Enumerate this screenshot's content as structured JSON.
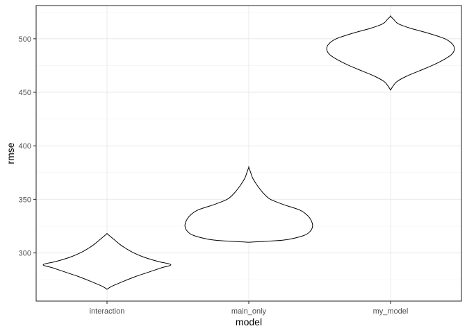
{
  "chart_data": {
    "type": "violin",
    "title": "",
    "xlabel": "model",
    "ylabel": "rmse",
    "categories": [
      "interaction",
      "main_only",
      "my_model"
    ],
    "ylim": [
      255,
      531
    ],
    "yticks": [
      300,
      350,
      400,
      450,
      500
    ],
    "grid": true,
    "theme": "bw",
    "colors": {
      "violin_stroke": "#000000",
      "violin_fill": "#ffffff",
      "grid_major": "#ebebeb",
      "grid_minor": "#f2f2f2",
      "panel_border": "#333333",
      "tick_label": "#4d4d4d"
    },
    "series": [
      {
        "category": "interaction",
        "min": 266,
        "max": 318,
        "profile": [
          [
            266,
            0.0
          ],
          [
            268,
            0.05
          ],
          [
            270,
            0.12
          ],
          [
            274,
            0.28
          ],
          [
            278,
            0.45
          ],
          [
            282,
            0.65
          ],
          [
            286,
            0.85
          ],
          [
            289,
            1.0
          ],
          [
            292,
            0.8
          ],
          [
            296,
            0.58
          ],
          [
            300,
            0.42
          ],
          [
            304,
            0.3
          ],
          [
            308,
            0.2
          ],
          [
            312,
            0.12
          ],
          [
            316,
            0.04
          ],
          [
            318,
            0.0
          ]
        ]
      },
      {
        "category": "main_only",
        "min": 310,
        "max": 380,
        "profile": [
          [
            310,
            0.0
          ],
          [
            312,
            0.55
          ],
          [
            316,
            0.85
          ],
          [
            320,
            0.96
          ],
          [
            325,
            1.0
          ],
          [
            330,
            0.98
          ],
          [
            335,
            0.92
          ],
          [
            340,
            0.8
          ],
          [
            345,
            0.55
          ],
          [
            350,
            0.34
          ],
          [
            355,
            0.24
          ],
          [
            360,
            0.17
          ],
          [
            365,
            0.11
          ],
          [
            370,
            0.06
          ],
          [
            375,
            0.03
          ],
          [
            380,
            0.0
          ]
        ]
      },
      {
        "category": "my_model",
        "min": 452,
        "max": 521,
        "profile": [
          [
            452,
            0.0
          ],
          [
            455,
            0.03
          ],
          [
            460,
            0.1
          ],
          [
            465,
            0.25
          ],
          [
            470,
            0.45
          ],
          [
            475,
            0.65
          ],
          [
            480,
            0.82
          ],
          [
            485,
            0.95
          ],
          [
            490,
            1.0
          ],
          [
            495,
            0.97
          ],
          [
            500,
            0.85
          ],
          [
            505,
            0.6
          ],
          [
            510,
            0.3
          ],
          [
            514,
            0.12
          ],
          [
            518,
            0.05
          ],
          [
            521,
            0.0
          ]
        ]
      }
    ]
  }
}
